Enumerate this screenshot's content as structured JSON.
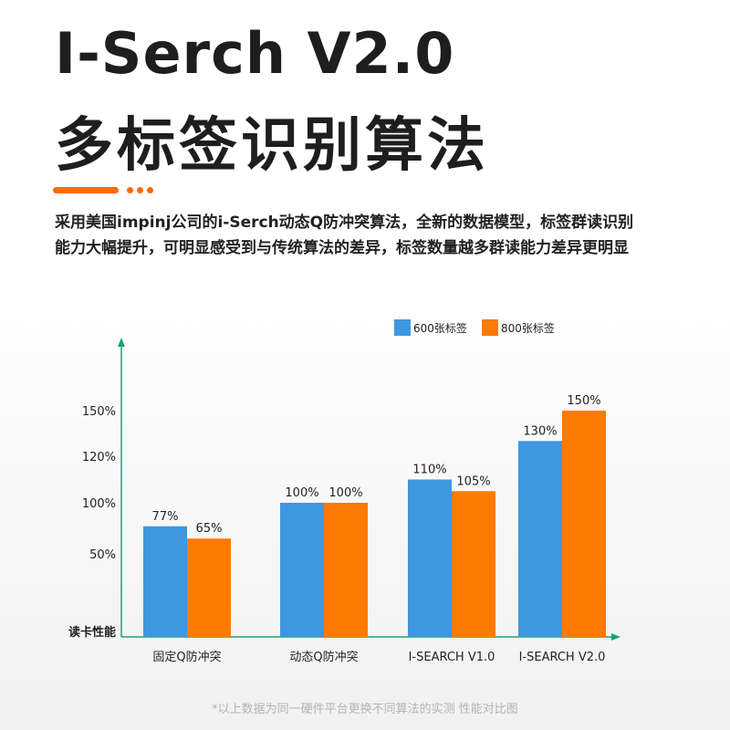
{
  "header": {
    "title_line1": "I-Serch V2.0",
    "title_line2": "多标签识别算法",
    "accent_color": "#ff6a00"
  },
  "description": {
    "line1": "采用美国impinj公司的i-Serch动态Q防冲突算法，全新的数据模型，标签群读识别",
    "line2": "能力大幅提升，可明显感受到与传统算法的差异，标签数量越多群读能力差异更明显"
  },
  "footnote": "*以上数据为同一硬件平台更换不同算法的实测 性能对比图",
  "chart_data": {
    "type": "bar",
    "categories": [
      "固定Q防冲突",
      "动态Q防冲突",
      "I-SEARCH V1.0",
      "I-SEARCH V2.0"
    ],
    "series": [
      {
        "name": "600张标签",
        "values": [
          77,
          100,
          110,
          130
        ],
        "labels": [
          "77%",
          "100%",
          "110%",
          "130%"
        ],
        "color": "#3f97e0"
      },
      {
        "name": "800张标签",
        "values": [
          65,
          100,
          105,
          150
        ],
        "labels": [
          "65%",
          "100%",
          "105%",
          "150%"
        ],
        "color": "#ff7a00"
      }
    ],
    "y_ticks": [
      {
        "value": 50,
        "label": "50%"
      },
      {
        "value": 100,
        "label": "100%"
      },
      {
        "value": 120,
        "label": "120%"
      },
      {
        "value": 150,
        "label": "150%"
      }
    ],
    "ylabel": "读卡性能",
    "xlabel": "",
    "axis_color": "#1aa37a",
    "legend_position": "top-right",
    "grid": false
  }
}
